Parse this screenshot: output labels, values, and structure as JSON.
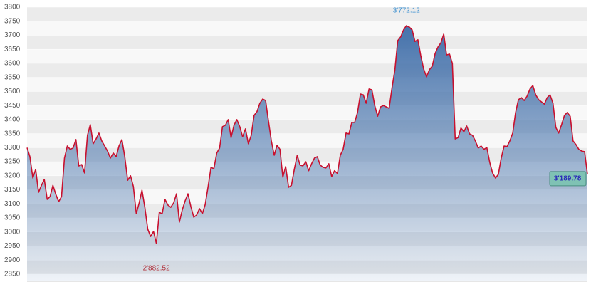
{
  "chart_data": {
    "type": "area",
    "values": [
      3300,
      3268,
      3192,
      3223,
      3141,
      3166,
      3187,
      3116,
      3126,
      3166,
      3134,
      3108,
      3126,
      3263,
      3306,
      3294,
      3299,
      3329,
      3235,
      3240,
      3210,
      3344,
      3382,
      3314,
      3331,
      3352,
      3324,
      3306,
      3288,
      3263,
      3281,
      3268,
      3306,
      3329,
      3268,
      3184,
      3200,
      3162,
      3065,
      3103,
      3149,
      3086,
      3010,
      2984,
      3002,
      2959,
      3070,
      3065,
      3116,
      3096,
      3088,
      3103,
      3136,
      3035,
      3078,
      3111,
      3136,
      3091,
      3053,
      3060,
      3083,
      3065,
      3098,
      3162,
      3230,
      3225,
      3281,
      3299,
      3375,
      3380,
      3400,
      3336,
      3380,
      3400,
      3375,
      3339,
      3367,
      3314,
      3344,
      3415,
      3428,
      3458,
      3473,
      3468,
      3395,
      3324,
      3273,
      3309,
      3294,
      3195,
      3233,
      3159,
      3166,
      3223,
      3273,
      3238,
      3235,
      3250,
      3218,
      3243,
      3263,
      3268,
      3238,
      3230,
      3228,
      3243,
      3197,
      3218,
      3208,
      3273,
      3294,
      3352,
      3349,
      3390,
      3390,
      3425,
      3491,
      3488,
      3458,
      3509,
      3506,
      3450,
      3412,
      3445,
      3450,
      3445,
      3440,
      3514,
      3577,
      3681,
      3694,
      3719,
      3734,
      3729,
      3719,
      3678,
      3684,
      3628,
      3580,
      3552,
      3577,
      3590,
      3635,
      3658,
      3673,
      3704,
      3630,
      3633,
      3600,
      3331,
      3336,
      3370,
      3357,
      3377,
      3349,
      3344,
      3324,
      3299,
      3306,
      3294,
      3301,
      3248,
      3210,
      3192,
      3205,
      3263,
      3306,
      3304,
      3324,
      3352,
      3425,
      3471,
      3478,
      3468,
      3483,
      3509,
      3521,
      3488,
      3471,
      3463,
      3455,
      3478,
      3488,
      3458,
      3372,
      3352,
      3382,
      3415,
      3425,
      3412,
      3324,
      3311,
      3294,
      3288,
      3286,
      3205
    ],
    "color": "#3d6ca8",
    "line_color": "#c8102e",
    "ylim": [
      2850,
      3800
    ],
    "yticks": [
      2850,
      2900,
      2950,
      3000,
      3050,
      3100,
      3150,
      3200,
      3250,
      3300,
      3350,
      3400,
      3450,
      3500,
      3550,
      3600,
      3650,
      3700,
      3750,
      3800
    ],
    "grid": true,
    "max_label": "3'772.12",
    "min_label": "2'882.52",
    "last_label": "3'189.78"
  }
}
